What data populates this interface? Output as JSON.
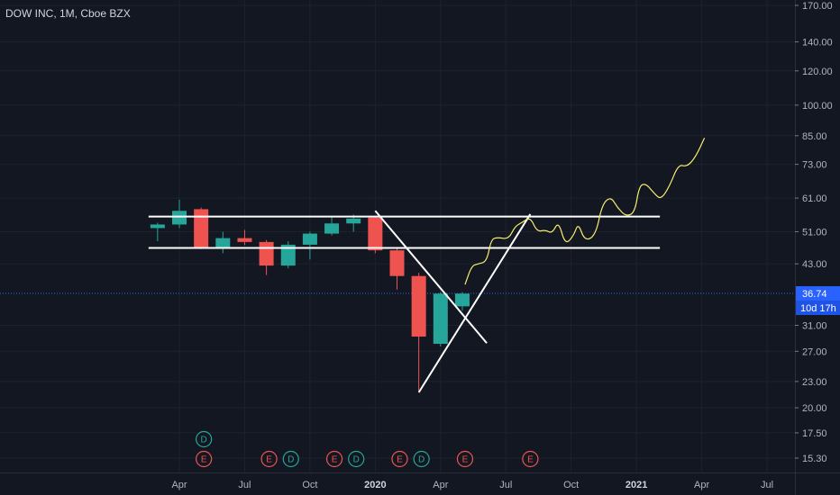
{
  "header": {
    "symbol_line": "DOW INC, 1M, Cboe BZX"
  },
  "colors": {
    "background": "#131722",
    "grid": "#1e222d",
    "up": "#26a69a",
    "down": "#ef5350",
    "last_price": "#2962ff",
    "drawing": "#ffffff",
    "projection": "#f7ef6b",
    "dividend_badge": "#26a69a",
    "earnings_badge": "#ef5350"
  },
  "chart_data": {
    "type": "candlestick",
    "scale": "log",
    "y_ticks": [
      "170.00",
      "140.00",
      "120.00",
      "100.00",
      "85.00",
      "73.00",
      "61.00",
      "51.00",
      "43.00",
      "36.74",
      "31.00",
      "27.00",
      "23.00",
      "20.00",
      "17.50",
      "15.30"
    ],
    "y_tick_values": [
      170,
      140,
      120,
      100,
      85,
      73,
      61,
      51,
      43,
      31,
      27,
      23,
      20,
      17.5,
      15.3
    ],
    "x_ticks": [
      {
        "label": "Apr",
        "date": "2019-04",
        "bold": false
      },
      {
        "label": "Jul",
        "date": "2019-07",
        "bold": false
      },
      {
        "label": "Oct",
        "date": "2019-10",
        "bold": false
      },
      {
        "label": "2020",
        "date": "2020-01",
        "bold": true
      },
      {
        "label": "Apr",
        "date": "2020-04",
        "bold": false
      },
      {
        "label": "Jul",
        "date": "2020-07",
        "bold": false
      },
      {
        "label": "Oct",
        "date": "2020-10",
        "bold": false
      },
      {
        "label": "2021",
        "date": "2021-01",
        "bold": true
      },
      {
        "label": "Apr",
        "date": "2021-04",
        "bold": false
      },
      {
        "label": "Jul",
        "date": "2021-07",
        "bold": false
      }
    ],
    "candles": [
      {
        "date": "2019-03",
        "open": 52.0,
        "high": 53.5,
        "low": 48.5,
        "close": 53.0
      },
      {
        "date": "2019-04",
        "open": 53.0,
        "high": 60.5,
        "low": 52.0,
        "close": 57.0
      },
      {
        "date": "2019-05",
        "open": 57.5,
        "high": 58.0,
        "low": 46.5,
        "close": 46.8
      },
      {
        "date": "2019-06",
        "open": 46.8,
        "high": 51.0,
        "low": 45.5,
        "close": 49.3
      },
      {
        "date": "2019-07",
        "open": 49.3,
        "high": 51.5,
        "low": 47.5,
        "close": 48.3
      },
      {
        "date": "2019-08",
        "open": 48.3,
        "high": 48.8,
        "low": 40.5,
        "close": 42.6
      },
      {
        "date": "2019-09",
        "open": 42.6,
        "high": 48.5,
        "low": 42.0,
        "close": 47.6
      },
      {
        "date": "2019-10",
        "open": 47.6,
        "high": 51.0,
        "low": 44.0,
        "close": 50.5
      },
      {
        "date": "2019-11",
        "open": 50.5,
        "high": 55.5,
        "low": 50.0,
        "close": 53.3
      },
      {
        "date": "2019-12",
        "open": 53.3,
        "high": 55.9,
        "low": 51.0,
        "close": 54.7
      },
      {
        "date": "2020-01",
        "open": 55.0,
        "high": 55.5,
        "low": 45.5,
        "close": 46.2
      },
      {
        "date": "2020-02",
        "open": 46.2,
        "high": 47.0,
        "low": 37.5,
        "close": 40.3
      },
      {
        "date": "2020-03",
        "open": 40.3,
        "high": 41.0,
        "low": 21.9,
        "close": 29.2
      },
      {
        "date": "2020-04",
        "open": 28.1,
        "high": 37.0,
        "low": 27.7,
        "close": 36.7
      },
      {
        "date": "2020-05",
        "open": 34.3,
        "high": 37.0,
        "low": 33.5,
        "close": 36.7
      }
    ],
    "last_price": {
      "value": 36.74,
      "label": "36.74",
      "countdown": "10d 17h"
    },
    "drawings": {
      "horizontal_lines": [
        {
          "value": 55.3,
          "from": "2019-03",
          "to": "2021-01"
        },
        {
          "value": 46.8,
          "from": "2019-03",
          "to": "2021-01"
        }
      ],
      "trend_lines": [
        {
          "from": {
            "date": "2020-01",
            "value": 57.0
          },
          "to": {
            "date": "2020-06",
            "value": 28.2
          }
        },
        {
          "from": {
            "date": "2020-03",
            "value": 21.7
          },
          "to": {
            "date": "2020-08",
            "value": 56.0
          }
        }
      ],
      "projection_path": [
        {
          "date": "2020-05",
          "value": 38.5
        },
        {
          "date": "2020-05.3",
          "value": 42.5
        },
        {
          "date": "2020-05.6",
          "value": 43.0
        },
        {
          "date": "2020-06",
          "value": 43.5
        },
        {
          "date": "2020-06.2",
          "value": 49.0
        },
        {
          "date": "2020-06.5",
          "value": 49.5
        },
        {
          "date": "2020-07",
          "value": 49.0
        },
        {
          "date": "2020-07.3",
          "value": 52.5
        },
        {
          "date": "2020-07.6",
          "value": 53.5
        },
        {
          "date": "2020-08",
          "value": 55.2
        },
        {
          "date": "2020-08.3",
          "value": 51.0
        },
        {
          "date": "2020-08.7",
          "value": 51.5
        },
        {
          "date": "2020-09",
          "value": 50.5
        },
        {
          "date": "2020-09.3",
          "value": 54.0
        },
        {
          "date": "2020-09.6",
          "value": 47.5
        },
        {
          "date": "2020-10",
          "value": 50.0
        },
        {
          "date": "2020-10.2",
          "value": 53.5
        },
        {
          "date": "2020-10.5",
          "value": 48.5
        },
        {
          "date": "2020-11",
          "value": 50.0
        },
        {
          "date": "2020-11.3",
          "value": 59.0
        },
        {
          "date": "2020-11.7",
          "value": 61.5
        },
        {
          "date": "2020-12",
          "value": 58.0
        },
        {
          "date": "2020-12.4",
          "value": 55.3
        },
        {
          "date": "2020-12.8",
          "value": 56.5
        },
        {
          "date": "2021-01",
          "value": 65.0
        },
        {
          "date": "2021-01.3",
          "value": 66.0
        },
        {
          "date": "2021-01.7",
          "value": 62.5
        },
        {
          "date": "2021-02",
          "value": 60.5
        },
        {
          "date": "2021-02.4",
          "value": 65.0
        },
        {
          "date": "2021-02.8",
          "value": 73.0
        },
        {
          "date": "2021-03.2",
          "value": 72.0
        },
        {
          "date": "2021-03.6",
          "value": 76.0
        },
        {
          "date": "2021-04",
          "value": 84.0
        }
      ]
    },
    "events": [
      {
        "type": "dividend",
        "letter": "D",
        "date": "2019-05",
        "row": 0
      },
      {
        "type": "earnings",
        "letter": "E",
        "date": "2019-05",
        "row": 1
      },
      {
        "type": "earnings",
        "letter": "E",
        "date": "2019-08",
        "row": 1
      },
      {
        "type": "dividend",
        "letter": "D",
        "date": "2019-09",
        "row": 1
      },
      {
        "type": "earnings",
        "letter": "E",
        "date": "2019-11",
        "row": 1
      },
      {
        "type": "dividend",
        "letter": "D",
        "date": "2019-12",
        "row": 1
      },
      {
        "type": "earnings",
        "letter": "E",
        "date": "2020-02",
        "row": 1
      },
      {
        "type": "dividend",
        "letter": "D",
        "date": "2020-03",
        "row": 1
      },
      {
        "type": "earnings",
        "letter": "E",
        "date": "2020-05",
        "row": 1
      },
      {
        "type": "earnings",
        "letter": "E",
        "date": "2020-08",
        "row": 1
      }
    ]
  }
}
